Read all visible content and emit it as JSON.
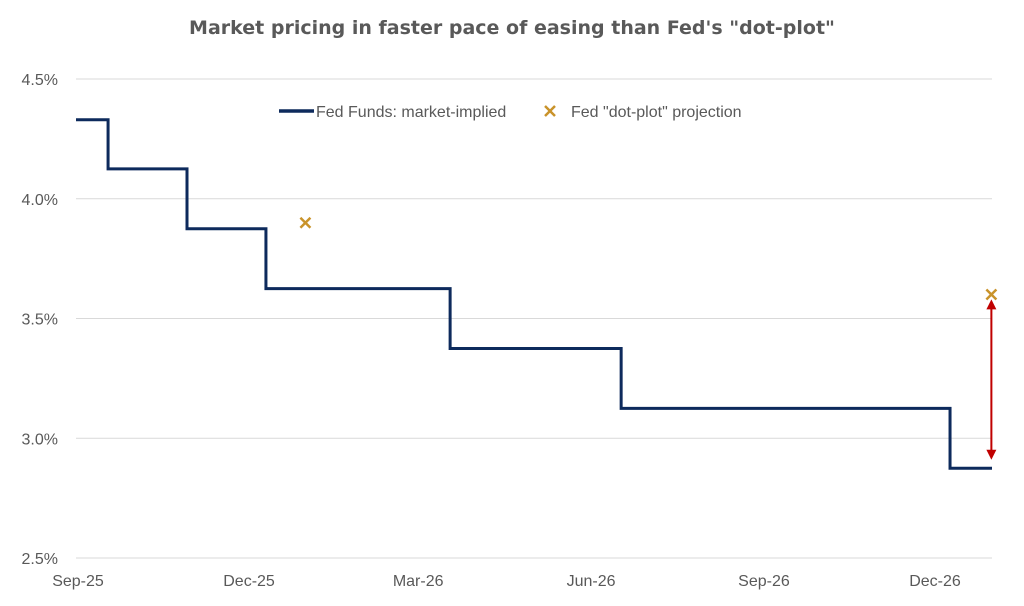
{
  "chart_data": {
    "type": "line",
    "title": "Market pricing in faster pace of easing than Fed's \"dot-plot\"",
    "xlabel": "",
    "ylabel": "",
    "ylim": [
      2.5,
      4.5
    ],
    "y_ticks": [
      4.5,
      4.0,
      3.5,
      3.0,
      2.5
    ],
    "y_tick_labels": [
      "4.5%",
      "4.0%",
      "3.5%",
      "3.0%",
      "2.5%"
    ],
    "x_range": [
      "2025-09-01",
      "2027-01-15"
    ],
    "x_ticks": [
      {
        "date": "2025-09-01",
        "label": "Sep-25"
      },
      {
        "date": "2025-12-01",
        "label": "Dec-25"
      },
      {
        "date": "2026-03-01",
        "label": "Mar-26"
      },
      {
        "date": "2026-06-01",
        "label": "Jun-26"
      },
      {
        "date": "2026-09-01",
        "label": "Sep-26"
      },
      {
        "date": "2026-12-01",
        "label": "Dec-26"
      }
    ],
    "grid": true,
    "legend_position": "top-center",
    "series": [
      {
        "name": "Fed Funds: market-implied",
        "style": "step",
        "color": "#0d2a5c",
        "points": [
          {
            "x": "2025-09-01",
            "y": 4.33
          },
          {
            "x": "2025-09-17",
            "y": 4.125
          },
          {
            "x": "2025-10-29",
            "y": 3.875
          },
          {
            "x": "2025-12-10",
            "y": 3.625
          },
          {
            "x": "2026-03-18",
            "y": 3.375
          },
          {
            "x": "2026-06-17",
            "y": 3.125
          },
          {
            "x": "2026-12-09",
            "y": 2.875
          },
          {
            "x": "2027-01-01",
            "y": 2.875
          }
        ]
      },
      {
        "name": "Fed \"dot-plot\" projection",
        "style": "marker-x",
        "color": "#c9932a",
        "points": [
          {
            "x": "2025-12-31",
            "y": 3.9
          },
          {
            "x": "2026-12-31",
            "y": 3.6
          }
        ]
      }
    ],
    "annotations": [
      {
        "type": "double-arrow",
        "x": "2026-12-31",
        "y_from": 3.58,
        "y_to": 2.91,
        "color": "#c00000"
      }
    ]
  }
}
